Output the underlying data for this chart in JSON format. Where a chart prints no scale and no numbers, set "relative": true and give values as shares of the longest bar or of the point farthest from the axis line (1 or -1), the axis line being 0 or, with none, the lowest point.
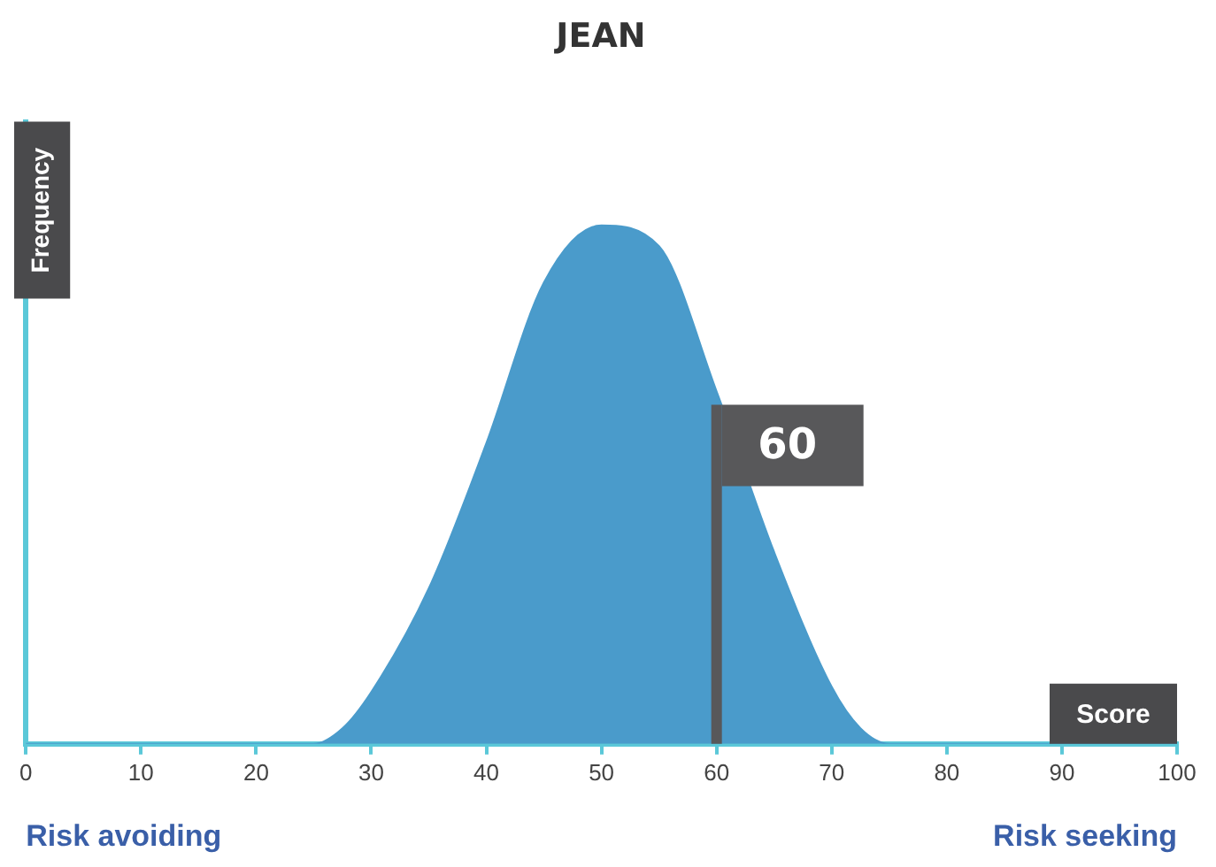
{
  "chart_data": {
    "type": "area",
    "title": "JEAN",
    "xlabel": "Score",
    "ylabel": "Frequency",
    "relative": true,
    "x": [
      0,
      25,
      27.5,
      30,
      35,
      40,
      45,
      50,
      55,
      60,
      65,
      70,
      72.5,
      75,
      100
    ],
    "series": [
      {
        "color": "#4a9bcb",
        "values": [
          0,
          0,
          0.03,
          0.1,
          0.3,
          0.58,
          0.89,
          1,
          0.96,
          0.68,
          0.37,
          0.11,
          0.03,
          0,
          0
        ]
      }
    ],
    "xlim": [
      0,
      100
    ],
    "xticks": [
      0,
      10,
      20,
      30,
      40,
      50,
      60,
      70,
      80,
      90,
      100
    ],
    "ref_lines": [
      {
        "axis": "x",
        "value": 60,
        "label": "60",
        "color": "#58585a"
      }
    ],
    "annotations": [
      "Risk avoiding",
      "Risk seeking"
    ],
    "grid": false,
    "legend": false,
    "marker": "none"
  }
}
